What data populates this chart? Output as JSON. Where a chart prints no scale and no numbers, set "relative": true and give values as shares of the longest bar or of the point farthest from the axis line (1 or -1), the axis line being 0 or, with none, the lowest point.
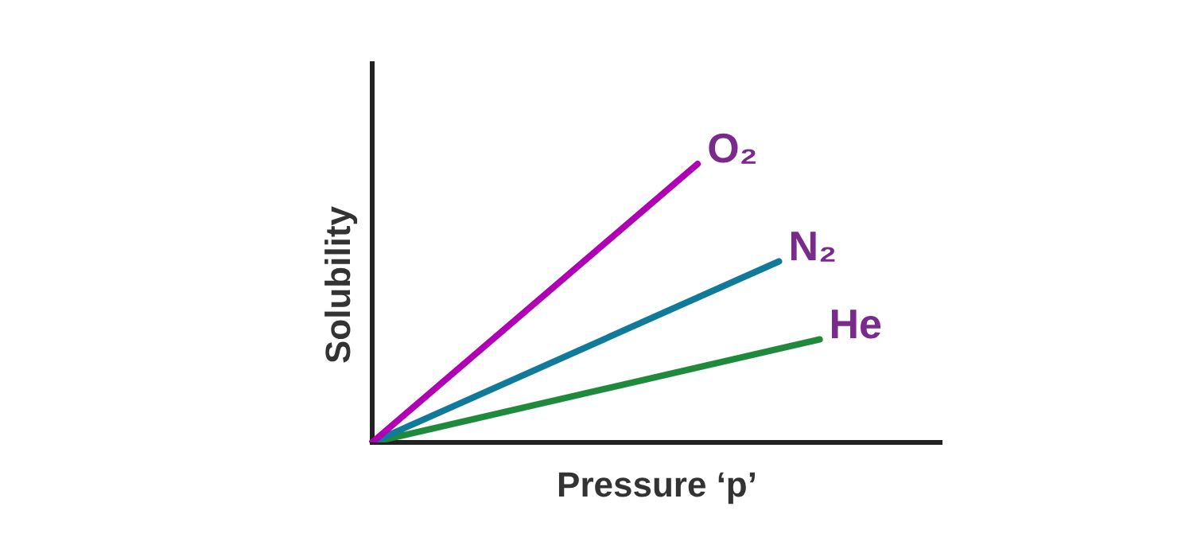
{
  "chart_data": {
    "type": "line",
    "relative": true,
    "xlabel": "Pressure ‘p’",
    "ylabel": "Solubility",
    "categories": [
      null,
      null,
      null,
      null,
      null,
      null,
      null,
      null,
      null,
      null,
      null,
      null,
      null,
      null,
      null
    ],
    "grid": false,
    "legend": false,
    "marker": "none",
    "line_style": "solid",
    "series": [
      {
        "name": "O₂",
        "color": "#b000b4",
        "values": [
          0,
          null,
          null,
          null,
          null,
          null,
          null,
          null,
          1,
          null,
          null,
          null,
          null,
          null,
          null
        ]
      },
      {
        "name": "N₂",
        "color": "#0f7a99",
        "values": [
          0,
          null,
          null,
          null,
          null,
          null,
          null,
          null,
          null,
          null,
          0.65,
          null,
          null,
          null,
          null
        ]
      },
      {
        "name": "He",
        "color": "#1f8a3c",
        "values": [
          0,
          null,
          null,
          null,
          null,
          null,
          null,
          null,
          null,
          null,
          null,
          0.37,
          null,
          null,
          null
        ]
      }
    ]
  }
}
